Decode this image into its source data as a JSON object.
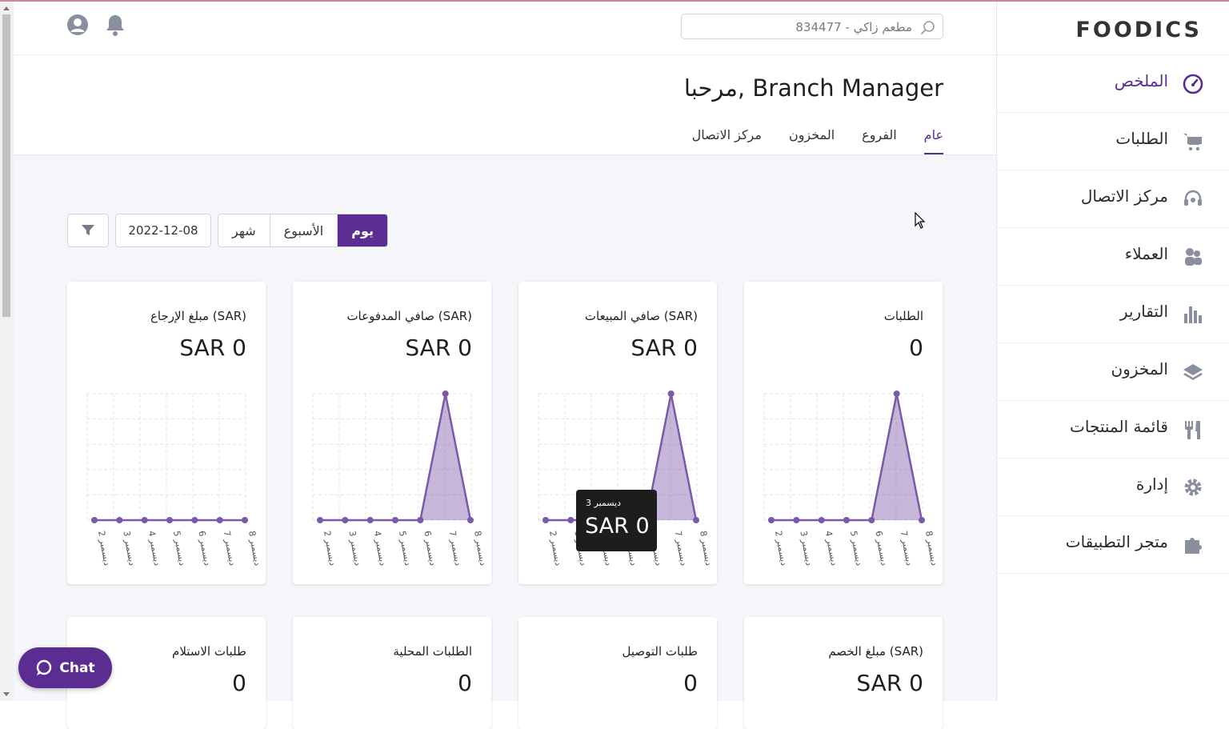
{
  "brand": {
    "logo": "FOODICS",
    "accent": "#5c2d91"
  },
  "header": {
    "search_value": "مطعم زاكي - 834477",
    "icons": [
      "search-icon",
      "user-icon",
      "bell-icon"
    ]
  },
  "sidebar": {
    "items": [
      {
        "label": "الملخص",
        "icon": "dashboard-icon",
        "active": true
      },
      {
        "label": "الطلبات",
        "icon": "cart-icon"
      },
      {
        "label": "مركز الاتصال",
        "icon": "headset-icon"
      },
      {
        "label": "العملاء",
        "icon": "customers-icon"
      },
      {
        "label": "التقارير",
        "icon": "bar-chart-icon"
      },
      {
        "label": "المخزون",
        "icon": "layers-icon"
      },
      {
        "label": "قائمة المنتجات",
        "icon": "utensils-icon"
      },
      {
        "label": "إدارة",
        "icon": "gear-icon"
      },
      {
        "label": "متجر التطبيقات",
        "icon": "puzzle-icon"
      }
    ]
  },
  "page": {
    "welcome": "مرحبا, Branch Manager",
    "tabs": [
      "عام",
      "الفروع",
      "المخزون",
      "مركز الاتصال"
    ],
    "active_tab": "عام"
  },
  "filters": {
    "period_options": [
      "يوم",
      "الأسبوع",
      "شهر"
    ],
    "active_period": "يوم",
    "date": "2022-12-08"
  },
  "stats_row1": [
    {
      "title": "الطلبات",
      "value": "0"
    },
    {
      "title": "صافي المبيعات (SAR)",
      "value": "SAR 0"
    },
    {
      "title": "صافي المدفوعات (SAR)",
      "value": "SAR 0"
    },
    {
      "title": "مبلغ الإرجاع (SAR)",
      "value": "SAR 0"
    }
  ],
  "stats_row2": [
    {
      "title": "مبلغ الخصم (SAR)",
      "value": "SAR 0"
    },
    {
      "title": "طلبات التوصيل",
      "value": "0"
    },
    {
      "title": "الطلبات المحلية",
      "value": "0"
    },
    {
      "title": "طلبات الاستلام",
      "value": "0"
    }
  ],
  "tooltip": {
    "date": "3 ديسمبر",
    "value": "SAR 0"
  },
  "chat": {
    "label": "Chat"
  },
  "chart_data": [
    {
      "type": "area",
      "x": [
        "2 ديسمبر",
        "3 ديسمبر",
        "4 ديسمبر",
        "5 ديسمبر",
        "6 ديسمبر",
        "7 ديسمبر",
        "8 ديسمبر"
      ],
      "values": [
        0,
        0,
        0,
        0,
        0,
        1,
        0
      ],
      "grid": true
    },
    {
      "type": "area",
      "x": [
        "2 ديسمبر",
        "3 ديسمبر",
        "4 ديسمبر",
        "5 ديسمبر",
        "6 ديسمبر",
        "7 ديسمبر",
        "8 ديسمبر"
      ],
      "values": [
        0,
        0,
        0,
        0,
        0,
        1,
        0
      ],
      "grid": true
    },
    {
      "type": "area",
      "x": [
        "2 ديسمبر",
        "3 ديسمبر",
        "4 ديسمبر",
        "5 ديسمبر",
        "6 ديسمبر",
        "7 ديسمبر",
        "8 ديسمبر"
      ],
      "values": [
        0,
        0,
        0,
        0,
        0,
        1,
        0
      ],
      "grid": true
    },
    {
      "type": "area",
      "x": [
        "2 ديسمبر",
        "3 ديسمبر",
        "4 ديسمبر",
        "5 ديسمبر",
        "6 ديسمبر",
        "7 ديسمبر",
        "8 ديسمبر"
      ],
      "values": [
        0,
        0,
        0,
        0,
        0,
        0,
        0
      ],
      "grid": true
    }
  ]
}
